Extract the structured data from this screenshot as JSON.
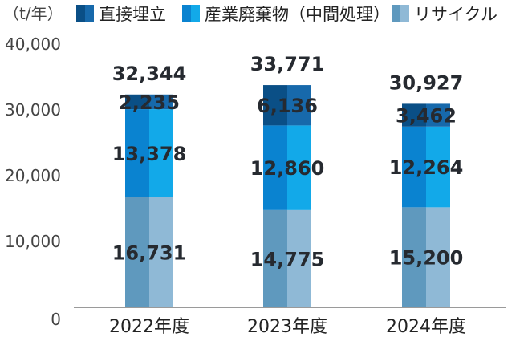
{
  "chart_data": {
    "type": "bar",
    "stacked": true,
    "unit_label": "（t/年）",
    "categories": [
      "2022年度",
      "2023年度",
      "2024年度"
    ],
    "series": [
      {
        "name": "リサイクル",
        "values": [
          16731,
          14775,
          15200
        ],
        "color_left": "#5f99be",
        "color_right": "#8fb9d6"
      },
      {
        "name": "産業廃棄物（中間処理）",
        "values": [
          13378,
          12860,
          12264
        ],
        "color_left": "#0a83d0",
        "color_right": "#12a9e9"
      },
      {
        "name": "直接埋立",
        "values": [
          2235,
          6136,
          3462
        ],
        "color_left": "#0a4f86",
        "color_right": "#1769ab"
      }
    ],
    "value_labels": [
      [
        "16,731",
        "14,775",
        "15,200"
      ],
      [
        "13,378",
        "12,860",
        "12,264"
      ],
      [
        "2,235",
        "6,136",
        "3,462"
      ]
    ],
    "totals": [
      32344,
      33771,
      30927
    ],
    "total_labels": [
      "32,344",
      "33,771",
      "30,927"
    ],
    "ylim": [
      0,
      40000
    ],
    "yticks": [
      0,
      10000,
      20000,
      30000,
      40000
    ],
    "ytick_labels": [
      "0",
      "10,000",
      "20,000",
      "30,000",
      "40,000"
    ],
    "legend_order": [
      "直接埋立",
      "産業廃棄物（中間処理）",
      "リサイクル"
    ],
    "legend_placement": "top",
    "grid": false
  }
}
